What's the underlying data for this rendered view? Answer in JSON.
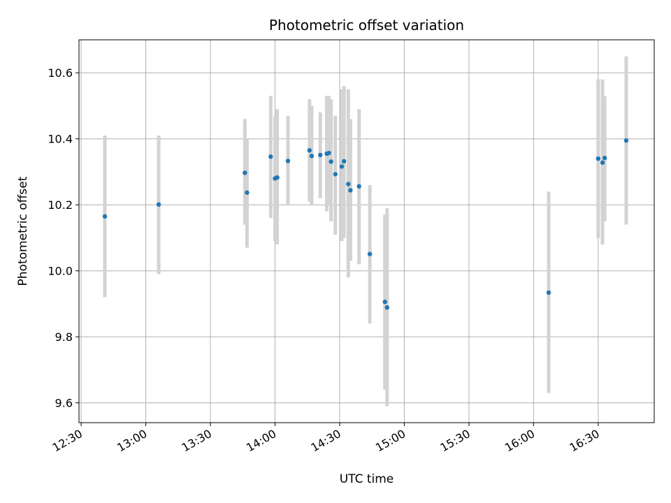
{
  "chart_data": {
    "type": "scatter",
    "title": "Photometric offset variation",
    "xlabel": "UTC time",
    "ylabel": "Photometric offset",
    "x_tick_labels": [
      "12:30",
      "13:00",
      "13:30",
      "14:00",
      "14:30",
      "15:00",
      "15:30",
      "16:00",
      "16:30"
    ],
    "x_tick_minutes": [
      750,
      780,
      810,
      840,
      870,
      900,
      930,
      960,
      990
    ],
    "xlim_minutes": [
      749,
      1016
    ],
    "y_tick_labels": [
      "9.6",
      "9.8",
      "10.0",
      "10.2",
      "10.4",
      "10.6"
    ],
    "y_ticks": [
      9.6,
      9.8,
      10.0,
      10.2,
      10.4,
      10.6
    ],
    "ylim": [
      9.54,
      10.7
    ],
    "grid": true,
    "colors": {
      "point": "#1f77b4",
      "errorbar": "#d3d3d3",
      "grid": "#b0b0b0"
    },
    "series": [
      {
        "points": [
          {
            "x": "12:41",
            "y": 10.165,
            "lo": 9.92,
            "hi": 10.41
          },
          {
            "x": "13:06",
            "y": 10.201,
            "lo": 9.99,
            "hi": 10.41
          },
          {
            "x": "13:46",
            "y": 10.297,
            "lo": 10.14,
            "hi": 10.46
          },
          {
            "x": "13:47",
            "y": 10.237,
            "lo": 10.07,
            "hi": 10.4
          },
          {
            "x": "13:58",
            "y": 10.346,
            "lo": 10.16,
            "hi": 10.53
          },
          {
            "x": "14:00",
            "y": 10.28,
            "lo": 10.09,
            "hi": 10.47
          },
          {
            "x": "14:01",
            "y": 10.283,
            "lo": 10.08,
            "hi": 10.49
          },
          {
            "x": "14:06",
            "y": 10.333,
            "lo": 10.2,
            "hi": 10.47
          },
          {
            "x": "14:16",
            "y": 10.365,
            "lo": 10.21,
            "hi": 10.52
          },
          {
            "x": "14:17",
            "y": 10.348,
            "lo": 10.2,
            "hi": 10.5
          },
          {
            "x": "14:21",
            "y": 10.351,
            "lo": 10.22,
            "hi": 10.48
          },
          {
            "x": "14:24",
            "y": 10.355,
            "lo": 10.18,
            "hi": 10.53
          },
          {
            "x": "14:25",
            "y": 10.357,
            "lo": 10.2,
            "hi": 10.53
          },
          {
            "x": "14:26",
            "y": 10.331,
            "lo": 10.15,
            "hi": 10.52
          },
          {
            "x": "14:28",
            "y": 10.293,
            "lo": 10.11,
            "hi": 10.47
          },
          {
            "x": "14:31",
            "y": 10.316,
            "lo": 10.09,
            "hi": 10.55
          },
          {
            "x": "14:32",
            "y": 10.332,
            "lo": 10.1,
            "hi": 10.56
          },
          {
            "x": "14:34",
            "y": 10.263,
            "lo": 9.98,
            "hi": 10.55
          },
          {
            "x": "14:35",
            "y": 10.244,
            "lo": 10.03,
            "hi": 10.46
          },
          {
            "x": "14:39",
            "y": 10.256,
            "lo": 10.02,
            "hi": 10.49
          },
          {
            "x": "14:44",
            "y": 10.051,
            "lo": 9.84,
            "hi": 10.26
          },
          {
            "x": "14:51",
            "y": 9.906,
            "lo": 9.64,
            "hi": 10.17
          },
          {
            "x": "14:52",
            "y": 9.889,
            "lo": 9.59,
            "hi": 10.19
          },
          {
            "x": "16:07",
            "y": 9.934,
            "lo": 9.63,
            "hi": 10.24
          },
          {
            "x": "16:30",
            "y": 10.34,
            "lo": 10.1,
            "hi": 10.58
          },
          {
            "x": "16:32",
            "y": 10.328,
            "lo": 10.08,
            "hi": 10.58
          },
          {
            "x": "16:33",
            "y": 10.342,
            "lo": 10.15,
            "hi": 10.53
          },
          {
            "x": "16:43",
            "y": 10.395,
            "lo": 10.14,
            "hi": 10.65
          }
        ]
      }
    ]
  }
}
